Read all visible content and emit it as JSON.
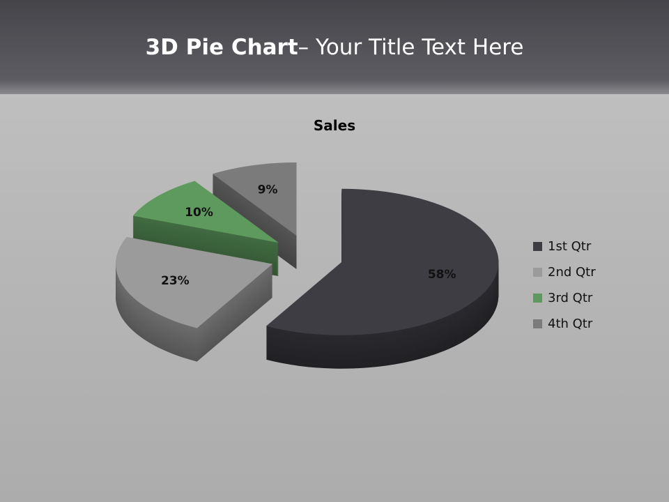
{
  "slide": {
    "title_bold": "3D Pie Chart",
    "title_rest": "– Your Title Text Here"
  },
  "chart_data": {
    "type": "pie",
    "style": "3d-exploded",
    "title": "Sales",
    "categories": [
      "1st Qtr",
      "2nd Qtr",
      "3rd Qtr",
      "4th Qtr"
    ],
    "values": [
      58,
      23,
      10,
      9
    ],
    "labels": [
      "58%",
      "23%",
      "10%",
      "9%"
    ],
    "colors": [
      "#3d3d43",
      "#9b9b9b",
      "#5e9a5e",
      "#7b7b7b"
    ],
    "legend_placement": "right"
  }
}
